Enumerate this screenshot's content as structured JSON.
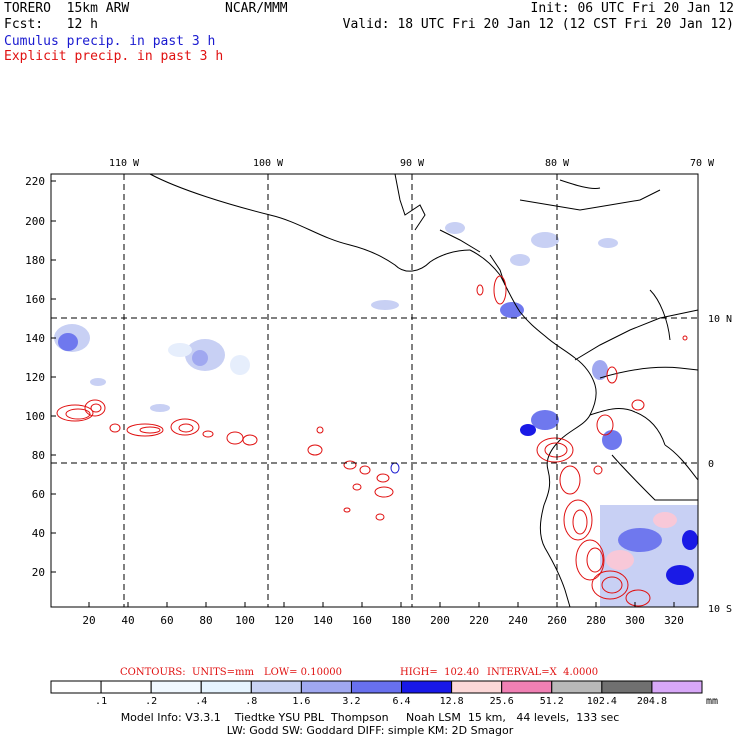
{
  "header": {
    "model": "TORERO  15km ARW",
    "center": "NCAR/MMM",
    "init": "Init: 06 UTC Fri 20 Jan 12",
    "fcst": "Fcst:   12 h",
    "valid": "Valid: 18 UTC Fri 20 Jan 12 (12 CST Fri 20 Jan 12)",
    "field1": "Cumulus precip. in past 3 h",
    "field2": "Explicit precip. in past 3 h"
  },
  "map": {
    "top_lon_labels": [
      "110 W",
      "100 W",
      "90 W",
      "80 W",
      "70 W"
    ],
    "right_lat_labels": [
      "10 N",
      "0",
      "10 S"
    ],
    "left_grid_labels": [
      "220",
      "200",
      "180",
      "160",
      "140",
      "120",
      "100",
      "80",
      "60",
      "40",
      "20"
    ],
    "bottom_grid_labels": [
      "20",
      "40",
      "60",
      "80",
      "100",
      "120",
      "140",
      "160",
      "180",
      "200",
      "220",
      "240",
      "260",
      "280",
      "300",
      "320"
    ],
    "colors": {
      "contour": "#e01010",
      "precip_light": "#c8d0f4",
      "precip_mid": "#6f78ee",
      "precip_dark": "#1a1ae6",
      "precip_pink": "#f8c8d8"
    }
  },
  "contours": {
    "label": "CONTOURS:  UNITS=mm",
    "low": "LOW= 0.10000",
    "high": "HIGH=  102.40",
    "interval": "INTERVAL=X  4.0000"
  },
  "colorbar": {
    "labels": [
      ".1",
      ".2",
      ".4",
      ".8",
      "1.6",
      "3.2",
      "6.4",
      "12.8",
      "25.6",
      "51.2",
      "102.4",
      "204.8"
    ],
    "unit": "mm",
    "colors": [
      "#ffffff",
      "#ffffff",
      "#f0f8ff",
      "#e6f4ff",
      "#c8d2f4",
      "#a0a8f0",
      "#6870ee",
      "#1818e8",
      "#fcd8d8",
      "#f080b4",
      "#b8b8b8",
      "#707070",
      "#d8a8f8"
    ]
  },
  "footer": {
    "line1": "Model Info: V3.3.1    Tiedtke YSU PBL  Thompson     Noah LSM  15 km,   44 levels,  133 sec",
    "line2": "LW: Godd SW: Goddard DIFF: simple KM: 2D Smagor"
  }
}
